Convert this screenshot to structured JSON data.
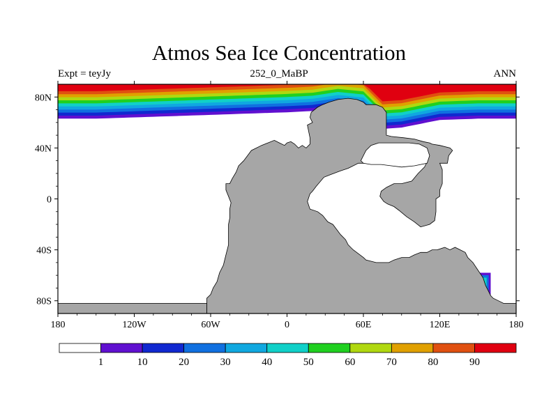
{
  "title": "Atmos Sea Ice Concentration",
  "subtitle_left": "Expt = teyJy",
  "subtitle_center": "252_0_MaBP",
  "subtitle_right": "ANN",
  "map": {
    "projection": "cylindrical equidistant",
    "lon_range": [
      -180,
      180
    ],
    "lat_range": [
      -90,
      90
    ],
    "x_ticks": [
      {
        "lon": -180,
        "label": "180"
      },
      {
        "lon": -120,
        "label": "120W"
      },
      {
        "lon": -60,
        "label": "60W"
      },
      {
        "lon": 0,
        "label": "0"
      },
      {
        "lon": 60,
        "label": "60E"
      },
      {
        "lon": 120,
        "label": "120E"
      },
      {
        "lon": 180,
        "label": "180"
      }
    ],
    "y_ticks": [
      {
        "lat": 80,
        "label": "80N"
      },
      {
        "lat": 40,
        "label": "40N"
      },
      {
        "lat": 0,
        "label": "0"
      },
      {
        "lat": -40,
        "label": "40S"
      },
      {
        "lat": -80,
        "label": "80S"
      }
    ],
    "land_color": "#a6a6a6",
    "ocean_color": "#ffffff",
    "land_polygons": [
      [
        [
          -63,
          -90
        ],
        [
          -63,
          -78
        ],
        [
          -60,
          -75
        ],
        [
          -58,
          -70
        ],
        [
          -55,
          -65
        ],
        [
          -53,
          -58
        ],
        [
          -50,
          -52
        ],
        [
          -48,
          -44
        ],
        [
          -46,
          -36
        ],
        [
          -46,
          -28
        ],
        [
          -46,
          -20
        ],
        [
          -45,
          -15
        ],
        [
          -45,
          -8
        ],
        [
          -44,
          -3
        ],
        [
          -46,
          2
        ],
        [
          -48,
          7
        ],
        [
          -48,
          12
        ],
        [
          -45,
          12
        ],
        [
          -43,
          16
        ],
        [
          -40,
          21
        ],
        [
          -38,
          26
        ],
        [
          -34,
          30
        ],
        [
          -31,
          34
        ],
        [
          -28,
          38
        ],
        [
          -24,
          40
        ],
        [
          -20,
          42
        ],
        [
          -15,
          44
        ],
        [
          -10,
          46
        ],
        [
          -6,
          44
        ],
        [
          -2,
          42
        ],
        [
          0,
          44
        ],
        [
          3,
          45
        ],
        [
          6,
          43
        ],
        [
          9,
          40
        ],
        [
          12,
          42
        ],
        [
          15,
          40
        ],
        [
          18,
          43
        ],
        [
          18,
          48
        ],
        [
          17,
          53
        ],
        [
          16,
          58
        ],
        [
          20,
          60
        ],
        [
          18,
          64
        ],
        [
          19,
          68
        ],
        [
          24,
          72
        ],
        [
          28,
          74
        ],
        [
          33,
          76
        ],
        [
          40,
          78
        ],
        [
          48,
          79
        ],
        [
          55,
          78
        ],
        [
          60,
          76
        ],
        [
          62,
          74
        ],
        [
          70,
          74
        ],
        [
          75,
          72
        ],
        [
          78,
          68
        ],
        [
          78,
          50
        ],
        [
          82,
          49
        ],
        [
          92,
          48
        ],
        [
          100,
          47
        ],
        [
          107,
          45
        ],
        [
          112,
          44
        ],
        [
          114,
          43
        ],
        [
          120,
          42
        ],
        [
          128,
          40
        ],
        [
          130,
          38
        ],
        [
          127,
          34
        ],
        [
          126,
          28
        ],
        [
          120,
          28
        ],
        [
          122,
          23
        ],
        [
          122,
          18
        ],
        [
          122,
          12
        ],
        [
          120,
          7
        ],
        [
          120,
          2
        ],
        [
          117,
          0
        ],
        [
          117,
          -10
        ],
        [
          116,
          -17
        ],
        [
          112,
          -20
        ],
        [
          105,
          -22
        ],
        [
          100,
          -18
        ],
        [
          94,
          -14
        ],
        [
          88,
          -9
        ],
        [
          84,
          -6
        ],
        [
          79,
          -4
        ],
        [
          76,
          -2
        ],
        [
          73,
          2
        ],
        [
          74,
          6
        ],
        [
          78,
          9
        ],
        [
          84,
          12
        ],
        [
          90,
          12
        ],
        [
          98,
          14
        ],
        [
          103,
          20
        ],
        [
          108,
          25
        ],
        [
          110,
          29
        ],
        [
          107,
          30
        ],
        [
          101,
          30
        ],
        [
          92,
          31
        ],
        [
          84,
          31
        ],
        [
          76,
          30
        ],
        [
          66,
          28
        ],
        [
          56,
          28
        ],
        [
          48,
          24
        ],
        [
          42,
          22
        ],
        [
          34,
          19
        ],
        [
          29,
          17
        ],
        [
          23,
          10
        ],
        [
          20,
          6
        ],
        [
          18,
          4
        ],
        [
          16,
          -2
        ],
        [
          18,
          -8
        ],
        [
          24,
          -10
        ],
        [
          28,
          -13
        ],
        [
          32,
          -18
        ],
        [
          36,
          -20
        ],
        [
          39,
          -24
        ],
        [
          42,
          -28
        ],
        [
          46,
          -32
        ],
        [
          48,
          -36
        ],
        [
          50,
          -38
        ],
        [
          52,
          -40
        ],
        [
          56,
          -43
        ],
        [
          60,
          -46
        ],
        [
          62,
          -48
        ],
        [
          70,
          -50
        ],
        [
          80,
          -50
        ],
        [
          84,
          -48
        ],
        [
          90,
          -46
        ],
        [
          96,
          -46
        ],
        [
          100,
          -44
        ],
        [
          105,
          -42
        ],
        [
          110,
          -42
        ],
        [
          114,
          -40
        ],
        [
          118,
          -40
        ],
        [
          124,
          -38
        ],
        [
          128,
          -40
        ],
        [
          132,
          -38
        ],
        [
          136,
          -40
        ],
        [
          140,
          -42
        ],
        [
          142,
          -46
        ],
        [
          146,
          -50
        ],
        [
          150,
          -56
        ],
        [
          154,
          -62
        ],
        [
          156,
          -68
        ],
        [
          158,
          -72
        ],
        [
          160,
          -76
        ],
        [
          162,
          -78
        ],
        [
          166,
          -80
        ],
        [
          170,
          -82
        ],
        [
          180,
          -82
        ],
        [
          180,
          -90
        ]
      ],
      [
        [
          -180,
          -90
        ],
        [
          -180,
          -82
        ],
        [
          -63,
          -82
        ],
        [
          -63,
          -90
        ]
      ],
      [
        [
          58,
          30
        ],
        [
          62,
          38
        ],
        [
          66,
          42
        ],
        [
          72,
          44
        ],
        [
          80,
          44
        ],
        [
          88,
          44
        ],
        [
          96,
          44
        ],
        [
          104,
          43
        ],
        [
          110,
          40
        ],
        [
          112,
          34
        ],
        [
          110,
          28
        ],
        [
          100,
          26
        ],
        [
          90,
          25
        ],
        [
          82,
          26
        ],
        [
          74,
          27
        ],
        [
          66,
          27
        ],
        [
          60,
          28
        ]
      ]
    ],
    "ocean_holes": [
      [
        [
          58,
          30
        ],
        [
          62,
          38
        ],
        [
          66,
          42
        ],
        [
          72,
          44
        ],
        [
          80,
          44
        ],
        [
          88,
          44
        ],
        [
          96,
          44
        ],
        [
          104,
          43
        ],
        [
          110,
          40
        ],
        [
          112,
          34
        ],
        [
          110,
          28
        ],
        [
          100,
          26
        ],
        [
          90,
          25
        ],
        [
          82,
          26
        ],
        [
          74,
          27
        ],
        [
          66,
          27
        ],
        [
          60,
          28
        ]
      ]
    ]
  },
  "colorbar": {
    "colors": [
      "#ffffff",
      "#6010d0",
      "#1028d0",
      "#1070e0",
      "#10a8e0",
      "#10d0c8",
      "#20d020",
      "#b0d810",
      "#e0a000",
      "#e05010",
      "#e00010"
    ],
    "labels": [
      "1",
      "10",
      "20",
      "30",
      "40",
      "50",
      "60",
      "70",
      "80",
      "90"
    ]
  },
  "sea_ice": {
    "levels": [
      1,
      10,
      20,
      30,
      40,
      50,
      60,
      70,
      80,
      90
    ],
    "north_edge_lat": [
      {
        "lon": -180,
        "lat": 63
      },
      {
        "lon": -150,
        "lat": 63
      },
      {
        "lon": -120,
        "lat": 64
      },
      {
        "lon": -90,
        "lat": 65
      },
      {
        "lon": -60,
        "lat": 66
      },
      {
        "lon": -30,
        "lat": 67
      },
      {
        "lon": 0,
        "lat": 68
      },
      {
        "lon": 20,
        "lat": 69
      },
      {
        "lon": 40,
        "lat": 72
      },
      {
        "lon": 60,
        "lat": 70
      },
      {
        "lon": 75,
        "lat": 55
      },
      {
        "lon": 90,
        "lat": 56
      },
      {
        "lon": 120,
        "lat": 62
      },
      {
        "lon": 150,
        "lat": 63
      },
      {
        "lon": 180,
        "lat": 63
      }
    ],
    "band_width_deg": 2.4,
    "south_patch": {
      "lon": [
        145,
        160
      ],
      "lat": [
        -84,
        -58
      ]
    }
  }
}
